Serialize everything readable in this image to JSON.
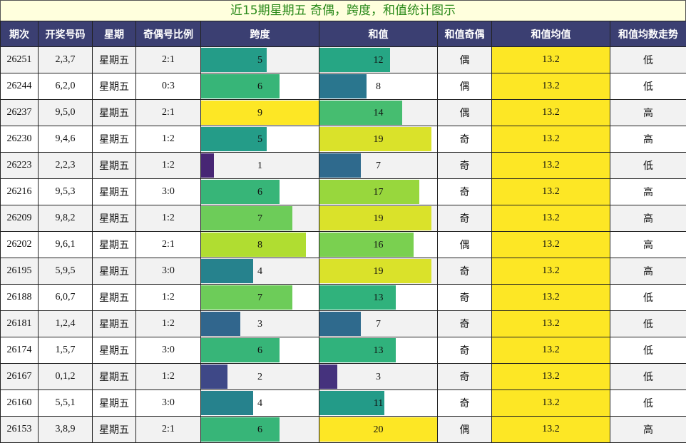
{
  "title": "近15期星期五 奇偶，跨度，和值统计图示",
  "headers": [
    "期次",
    "开奖号码",
    "星期",
    "奇偶号比例",
    "跨度",
    "和值",
    "和值奇偶",
    "和值均值",
    "和值均数走势"
  ],
  "chart_data": {
    "type": "table",
    "span_max": 9,
    "sum_max": 20,
    "rows": [
      {
        "issue": "26251",
        "numbers": "2,3,7",
        "weekday": "星期五",
        "ratio": "2:1",
        "span": 5,
        "sum": 12,
        "parity": "偶",
        "avg": "13.2",
        "trend": "低"
      },
      {
        "issue": "26244",
        "numbers": "6,2,0",
        "weekday": "星期五",
        "ratio": "0:3",
        "span": 6,
        "sum": 8,
        "parity": "偶",
        "avg": "13.2",
        "trend": "低"
      },
      {
        "issue": "26237",
        "numbers": "9,5,0",
        "weekday": "星期五",
        "ratio": "2:1",
        "span": 9,
        "sum": 14,
        "parity": "偶",
        "avg": "13.2",
        "trend": "高"
      },
      {
        "issue": "26230",
        "numbers": "9,4,6",
        "weekday": "星期五",
        "ratio": "1:2",
        "span": 5,
        "sum": 19,
        "parity": "奇",
        "avg": "13.2",
        "trend": "高"
      },
      {
        "issue": "26223",
        "numbers": "2,2,3",
        "weekday": "星期五",
        "ratio": "1:2",
        "span": 1,
        "sum": 7,
        "parity": "奇",
        "avg": "13.2",
        "trend": "低"
      },
      {
        "issue": "26216",
        "numbers": "9,5,3",
        "weekday": "星期五",
        "ratio": "3:0",
        "span": 6,
        "sum": 17,
        "parity": "奇",
        "avg": "13.2",
        "trend": "高"
      },
      {
        "issue": "26209",
        "numbers": "9,8,2",
        "weekday": "星期五",
        "ratio": "1:2",
        "span": 7,
        "sum": 19,
        "parity": "奇",
        "avg": "13.2",
        "trend": "高"
      },
      {
        "issue": "26202",
        "numbers": "9,6,1",
        "weekday": "星期五",
        "ratio": "2:1",
        "span": 8,
        "sum": 16,
        "parity": "偶",
        "avg": "13.2",
        "trend": "高"
      },
      {
        "issue": "26195",
        "numbers": "5,9,5",
        "weekday": "星期五",
        "ratio": "3:0",
        "span": 4,
        "sum": 19,
        "parity": "奇",
        "avg": "13.2",
        "trend": "高"
      },
      {
        "issue": "26188",
        "numbers": "6,0,7",
        "weekday": "星期五",
        "ratio": "1:2",
        "span": 7,
        "sum": 13,
        "parity": "奇",
        "avg": "13.2",
        "trend": "低"
      },
      {
        "issue": "26181",
        "numbers": "1,2,4",
        "weekday": "星期五",
        "ratio": "1:2",
        "span": 3,
        "sum": 7,
        "parity": "奇",
        "avg": "13.2",
        "trend": "低"
      },
      {
        "issue": "26174",
        "numbers": "1,5,7",
        "weekday": "星期五",
        "ratio": "3:0",
        "span": 6,
        "sum": 13,
        "parity": "奇",
        "avg": "13.2",
        "trend": "低"
      },
      {
        "issue": "26167",
        "numbers": "0,1,2",
        "weekday": "星期五",
        "ratio": "1:2",
        "span": 2,
        "sum": 3,
        "parity": "奇",
        "avg": "13.2",
        "trend": "低"
      },
      {
        "issue": "26160",
        "numbers": "5,5,1",
        "weekday": "星期五",
        "ratio": "3:0",
        "span": 4,
        "sum": 11,
        "parity": "奇",
        "avg": "13.2",
        "trend": "低"
      },
      {
        "issue": "26153",
        "numbers": "3,8,9",
        "weekday": "星期五",
        "ratio": "2:1",
        "span": 6,
        "sum": 20,
        "parity": "偶",
        "avg": "13.2",
        "trend": "高"
      }
    ]
  },
  "colors": {
    "header_bg": "#3b3f72",
    "title_bg": "#ffffdd",
    "title_text": "#2a8a1a",
    "avg_bg": "#fde725",
    "colormap": "viridis"
  }
}
